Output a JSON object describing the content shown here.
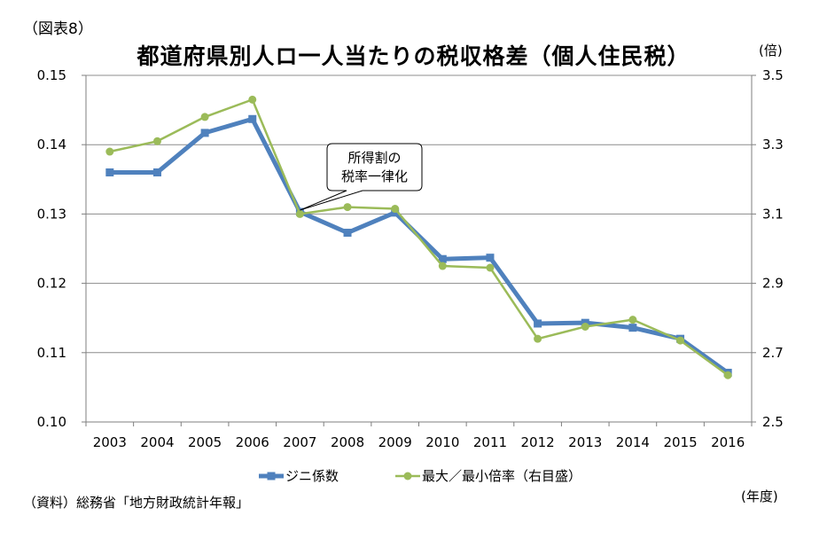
{
  "figure_label": "（図表8）",
  "chart_data": {
    "type": "line",
    "title": "都道府県別人ロ一人当たりの税収格差（個人住民税）",
    "categories": [
      "2003",
      "2004",
      "2005",
      "2006",
      "2007",
      "2008",
      "2009",
      "2010",
      "2011",
      "2012",
      "2013",
      "2014",
      "2015",
      "2016"
    ],
    "x_unit": "(年度)",
    "y_left": {
      "range": [
        0.1,
        0.15
      ],
      "ticks": [
        "0.10",
        "0.11",
        "0.12",
        "0.13",
        "0.14",
        "0.15"
      ]
    },
    "y_right": {
      "unit": "(倍)",
      "range": [
        2.5,
        3.5
      ],
      "ticks": [
        "2.5",
        "2.7",
        "2.9",
        "3.1",
        "3.3",
        "3.5"
      ]
    },
    "grid": true,
    "legend_position": "bottom",
    "series": [
      {
        "name": "ジニ係数",
        "axis": "left",
        "color": "#4f81bd",
        "marker": "square",
        "values": [
          0.136,
          0.136,
          0.1417,
          0.1437,
          0.1303,
          0.1273,
          0.1302,
          0.1235,
          0.1237,
          0.1142,
          0.1143,
          0.1136,
          0.112,
          0.1071
        ]
      },
      {
        "name": "最大／最小倍率（右目盛）",
        "axis": "right",
        "color": "#9bbb59",
        "marker": "circle",
        "values": [
          3.28,
          3.31,
          3.38,
          3.43,
          3.1,
          3.12,
          3.115,
          2.95,
          2.945,
          2.74,
          2.775,
          2.795,
          2.735,
          2.635
        ]
      }
    ],
    "annotation": {
      "lines": [
        "所得割の",
        "税率一律化"
      ],
      "target_category": "2007"
    }
  },
  "source": "（資料）総務省「地方財政統計年報」"
}
